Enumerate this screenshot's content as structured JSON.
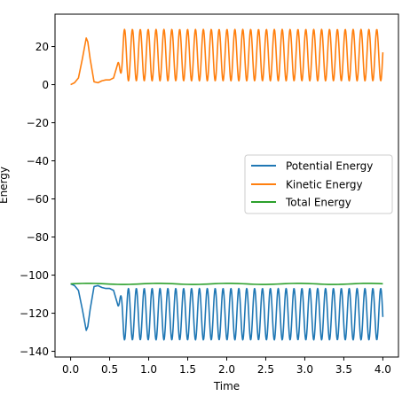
{
  "chart_data": {
    "type": "line",
    "title": "",
    "xlabel": "Time",
    "ylabel": "Energy",
    "xlim": [
      -0.2,
      4.2
    ],
    "ylim": [
      -143,
      37
    ],
    "xticks": [
      0.0,
      0.5,
      1.0,
      1.5,
      2.0,
      2.5,
      3.0,
      3.5,
      4.0
    ],
    "xtick_labels": [
      "0.0",
      "0.5",
      "1.0",
      "1.5",
      "2.0",
      "2.5",
      "3.0",
      "3.5",
      "4.0"
    ],
    "yticks": [
      20,
      0,
      -20,
      -40,
      -60,
      -80,
      -100,
      -120,
      -140
    ],
    "ytick_labels": [
      "20",
      "0",
      "−20",
      "−40",
      "−60",
      "−80",
      "−100",
      "−120",
      "−140"
    ],
    "grid": false,
    "legend_position": "center-right",
    "total_energy": -104.6,
    "kinetic_range": [
      2,
      29
    ],
    "potential_range": [
      -134,
      -107
    ],
    "series": [
      {
        "name": "Potential Energy",
        "color": "#1f77b4",
        "x": [
          0.0,
          0.05,
          0.1,
          0.15,
          0.2,
          0.22,
          0.25,
          0.3,
          0.35,
          0.4,
          0.45,
          0.5,
          0.55,
          0.6
        ],
        "values": [
          -104.6,
          -105.5,
          -108,
          -118,
          -129,
          -127,
          -118,
          -106,
          -105.5,
          -106.5,
          -107,
          -107,
          -108,
          -115
        ]
      },
      {
        "name": "Kinetic Energy",
        "color": "#ff7f0e",
        "x": [
          0.0,
          0.05,
          0.1,
          0.15,
          0.2,
          0.22,
          0.25,
          0.3,
          0.35,
          0.4,
          0.45,
          0.5,
          0.55,
          0.6
        ],
        "values": [
          0,
          1,
          3.5,
          13.5,
          24.5,
          22.5,
          13.5,
          1.5,
          1,
          2,
          2.5,
          2.5,
          3.5,
          10.5
        ]
      },
      {
        "name": "Total Energy",
        "color": "#2ca02c",
        "x": [
          0.0,
          4.0
        ],
        "values": [
          -104.6,
          -104.6
        ]
      }
    ]
  }
}
